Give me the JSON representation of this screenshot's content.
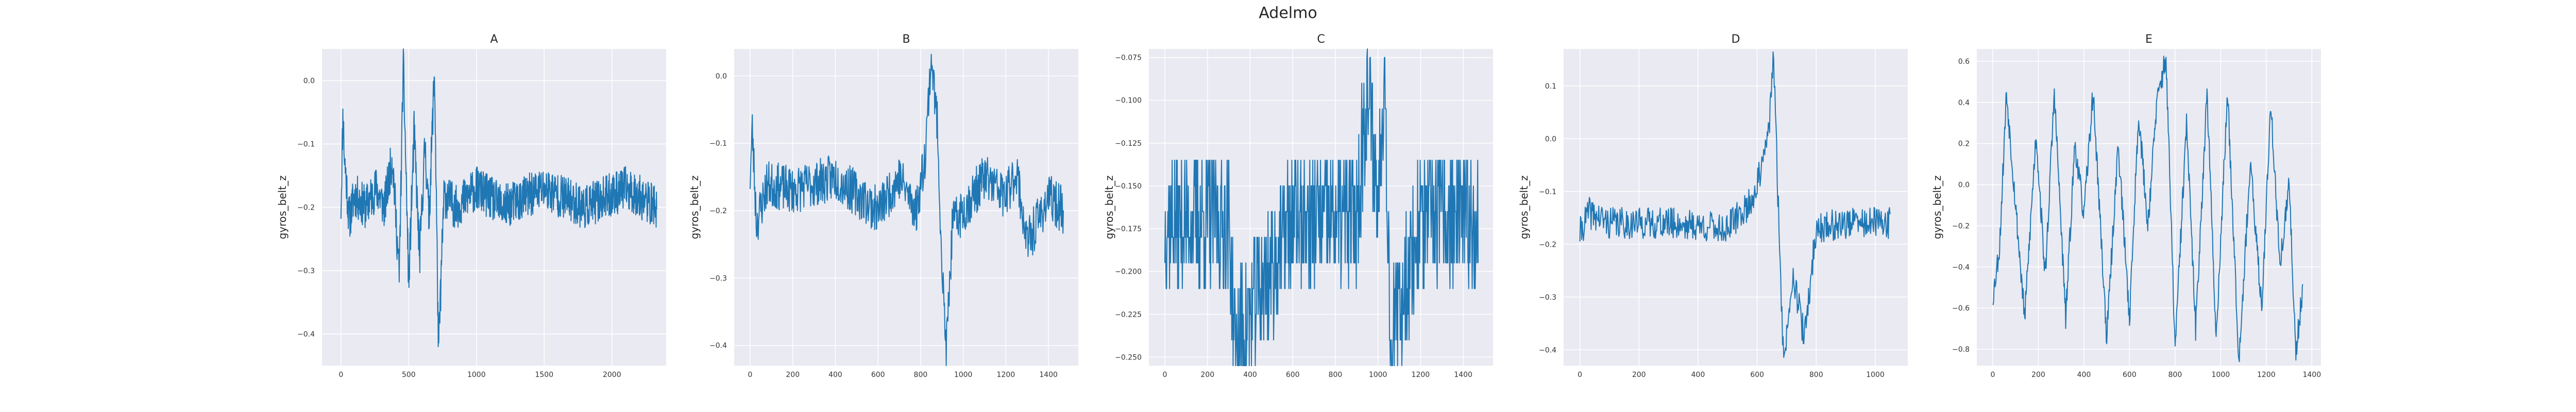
{
  "figure": {
    "title": "Adelmo"
  },
  "style": {
    "line_color": "#1f77b4",
    "plot_bg": "#eaeaf2"
  },
  "chart_data": [
    {
      "type": "line",
      "title": "A",
      "ylabel": "gyros_belt_z",
      "xlim": [
        -140,
        2400
      ],
      "ylim": [
        -0.45,
        0.05
      ],
      "xticks": [
        0,
        500,
        1000,
        1500,
        2000
      ],
      "yticks": [
        0.0,
        -0.1,
        -0.2,
        -0.3,
        -0.4
      ],
      "ytick_labels": [
        "0.0",
        "−0.1",
        "−0.2",
        "−0.3",
        "−0.4"
      ],
      "profile": [
        [
          0,
          -0.2
        ],
        [
          15,
          -0.05
        ],
        [
          25,
          -0.12
        ],
        [
          40,
          -0.16
        ],
        [
          60,
          -0.22
        ],
        [
          100,
          -0.18
        ],
        [
          180,
          -0.2
        ],
        [
          260,
          -0.17
        ],
        [
          320,
          -0.2
        ],
        [
          380,
          -0.12
        ],
        [
          430,
          -0.31
        ],
        [
          460,
          0.03
        ],
        [
          500,
          -0.32
        ],
        [
          540,
          -0.08
        ],
        [
          580,
          -0.28
        ],
        [
          620,
          -0.1
        ],
        [
          650,
          -0.22
        ],
        [
          690,
          0.02
        ],
        [
          720,
          -0.43
        ],
        [
          760,
          -0.18
        ],
        [
          850,
          -0.2
        ],
        [
          1000,
          -0.17
        ],
        [
          1200,
          -0.2
        ],
        [
          1500,
          -0.17
        ],
        [
          1800,
          -0.2
        ],
        [
          2100,
          -0.17
        ],
        [
          2330,
          -0.2
        ]
      ],
      "n_points": 2330,
      "noise": 0.035,
      "seed": 11
    },
    {
      "type": "line",
      "title": "B",
      "ylabel": "gyros_belt_z",
      "xlim": [
        -75,
        1540
      ],
      "ylim": [
        -0.43,
        0.04
      ],
      "xticks": [
        0,
        200,
        400,
        600,
        800,
        1000,
        1200,
        1400
      ],
      "yticks": [
        0.0,
        -0.1,
        -0.2,
        -0.3,
        -0.4
      ],
      "ytick_labels": [
        "0.0",
        "−0.1",
        "−0.2",
        "−0.3",
        "−0.4"
      ],
      "profile": [
        [
          0,
          -0.15
        ],
        [
          10,
          -0.08
        ],
        [
          30,
          -0.22
        ],
        [
          80,
          -0.16
        ],
        [
          200,
          -0.17
        ],
        [
          400,
          -0.15
        ],
        [
          600,
          -0.2
        ],
        [
          700,
          -0.15
        ],
        [
          780,
          -0.2
        ],
        [
          820,
          -0.12
        ],
        [
          850,
          0.03
        ],
        [
          880,
          -0.08
        ],
        [
          900,
          -0.28
        ],
        [
          920,
          -0.41
        ],
        [
          950,
          -0.22
        ],
        [
          1000,
          -0.2
        ],
        [
          1100,
          -0.15
        ],
        [
          1200,
          -0.18
        ],
        [
          1250,
          -0.14
        ],
        [
          1300,
          -0.25
        ],
        [
          1400,
          -0.18
        ],
        [
          1470,
          -0.2
        ]
      ],
      "n_points": 1470,
      "noise": 0.035,
      "seed": 23
    },
    {
      "type": "line",
      "title": "C",
      "ylabel": "gyros_belt_z",
      "xlim": [
        -75,
        1540
      ],
      "ylim": [
        -0.255,
        -0.07
      ],
      "xticks": [
        0,
        200,
        400,
        600,
        800,
        1000,
        1200,
        1400
      ],
      "yticks": [
        -0.075,
        -0.1,
        -0.125,
        -0.15,
        -0.175,
        -0.2,
        -0.225,
        -0.25
      ],
      "ytick_labels": [
        "−0.075",
        "−0.100",
        "−0.125",
        "−0.150",
        "−0.175",
        "−0.200",
        "−0.225",
        "−0.250"
      ],
      "profile": [
        [
          0,
          -0.17
        ],
        [
          300,
          -0.17
        ],
        [
          330,
          -0.245
        ],
        [
          600,
          -0.17
        ],
        [
          900,
          -0.17
        ],
        [
          950,
          -0.09
        ],
        [
          1000,
          -0.16
        ],
        [
          1030,
          -0.075
        ],
        [
          1060,
          -0.245
        ],
        [
          1200,
          -0.17
        ],
        [
          1470,
          -0.17
        ]
      ],
      "n_points": 1470,
      "noise": 0.04,
      "quantize": 0.015,
      "seed": 37
    },
    {
      "type": "line",
      "title": "D",
      "ylabel": "gyros_belt_z",
      "xlim": [
        -55,
        1110
      ],
      "ylim": [
        -0.43,
        0.17
      ],
      "xticks": [
        0,
        200,
        400,
        600,
        800,
        1000
      ],
      "yticks": [
        0.1,
        0.0,
        -0.1,
        -0.2,
        -0.3,
        -0.4
      ],
      "ytick_labels": [
        "0.1",
        "0.0",
        "−0.1",
        "−0.2",
        "−0.3",
        "−0.4"
      ],
      "profile": [
        [
          0,
          -0.18
        ],
        [
          30,
          -0.14
        ],
        [
          100,
          -0.16
        ],
        [
          300,
          -0.16
        ],
        [
          500,
          -0.17
        ],
        [
          580,
          -0.12
        ],
        [
          620,
          -0.05
        ],
        [
          640,
          0.02
        ],
        [
          655,
          0.16
        ],
        [
          670,
          -0.1
        ],
        [
          690,
          -0.43
        ],
        [
          720,
          -0.25
        ],
        [
          760,
          -0.38
        ],
        [
          800,
          -0.17
        ],
        [
          900,
          -0.16
        ],
        [
          1050,
          -0.16
        ]
      ],
      "n_points": 1050,
      "noise": 0.03,
      "seed": 41
    },
    {
      "type": "line",
      "title": "E",
      "ylabel": "gyros_belt_z",
      "xlim": [
        -70,
        1440
      ],
      "ylim": [
        -0.88,
        0.66
      ],
      "xticks": [
        0,
        200,
        400,
        600,
        800,
        1000,
        1200,
        1400
      ],
      "yticks": [
        0.6,
        0.4,
        0.2,
        0.0,
        -0.2,
        -0.4,
        -0.6,
        -0.8
      ],
      "ytick_labels": [
        "0.6",
        "0.4",
        "0.2",
        "0.0",
        "−0.2",
        "−0.4",
        "−0.6",
        "−0.8"
      ],
      "profile": [
        [
          0,
          -0.55
        ],
        [
          30,
          -0.3
        ],
        [
          60,
          0.45
        ],
        [
          100,
          -0.1
        ],
        [
          140,
          -0.65
        ],
        [
          190,
          0.25
        ],
        [
          230,
          -0.45
        ],
        [
          270,
          0.45
        ],
        [
          320,
          -0.65
        ],
        [
          360,
          0.2
        ],
        [
          400,
          -0.15
        ],
        [
          440,
          0.45
        ],
        [
          500,
          -0.75
        ],
        [
          550,
          0.2
        ],
        [
          600,
          -0.65
        ],
        [
          640,
          0.35
        ],
        [
          680,
          -0.2
        ],
        [
          720,
          0.4
        ],
        [
          760,
          0.62
        ],
        [
          800,
          -0.8
        ],
        [
          850,
          0.3
        ],
        [
          890,
          -0.7
        ],
        [
          940,
          0.45
        ],
        [
          980,
          -0.75
        ],
        [
          1030,
          0.45
        ],
        [
          1080,
          -0.85
        ],
        [
          1130,
          0.1
        ],
        [
          1180,
          -0.6
        ],
        [
          1220,
          0.4
        ],
        [
          1260,
          -0.4
        ],
        [
          1300,
          0.0
        ],
        [
          1330,
          -0.82
        ],
        [
          1360,
          -0.5
        ]
      ],
      "n_points": 1360,
      "noise": 0.06,
      "seed": 53
    }
  ]
}
